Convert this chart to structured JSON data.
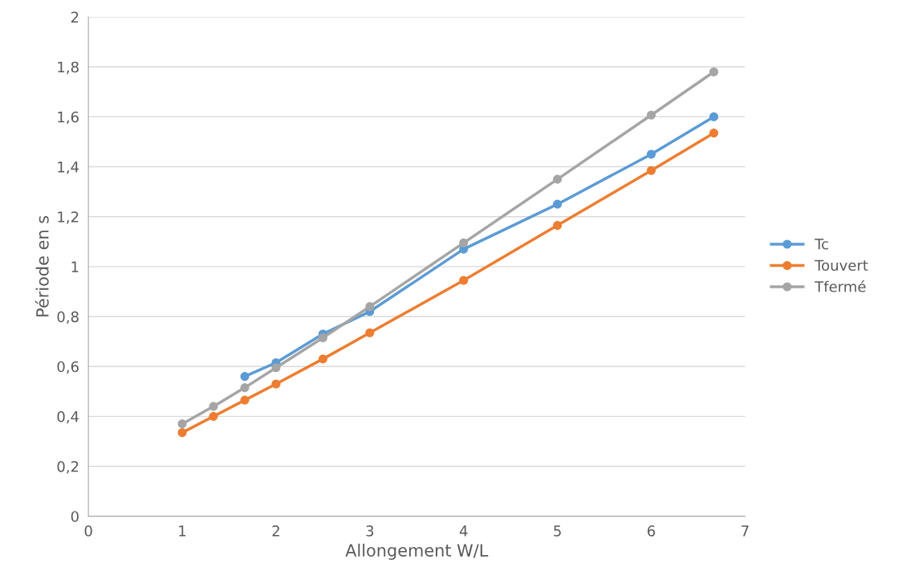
{
  "chart_data": {
    "type": "line",
    "xlabel": "Allongement W/L",
    "ylabel": "Période en s",
    "xlim": [
      0,
      7
    ],
    "xticks": [
      0,
      1,
      2,
      3,
      4,
      5,
      6,
      7
    ],
    "ylim": [
      0,
      2
    ],
    "yticks": [
      {
        "value": 0,
        "label": "0"
      },
      {
        "value": 0.2,
        "label": "0,2"
      },
      {
        "value": 0.4,
        "label": "0,4"
      },
      {
        "value": 0.6,
        "label": "0,6"
      },
      {
        "value": 0.8,
        "label": "0,8"
      },
      {
        "value": 1,
        "label": "1"
      },
      {
        "value": 1.2,
        "label": "1,2"
      },
      {
        "value": 1.4,
        "label": "1,4"
      },
      {
        "value": 1.6,
        "label": "1,6"
      },
      {
        "value": 1.8,
        "label": "1,8"
      },
      {
        "value": 2,
        "label": "2"
      }
    ],
    "grid": "y",
    "legend": "right",
    "marker": "circle",
    "line_style": "solid",
    "series": [
      {
        "name": "Tc",
        "color": "#5b9bd5",
        "x": [
          1.667,
          2,
          2.5,
          3,
          4,
          5,
          6,
          6.667
        ],
        "values": [
          0.56,
          0.615,
          0.73,
          0.82,
          1.07,
          1.25,
          1.45,
          1.6
        ]
      },
      {
        "name": "Touvert",
        "color": "#ed7d31",
        "x": [
          1,
          1.333,
          1.667,
          2,
          2.5,
          3,
          4,
          5,
          6,
          6.667
        ],
        "values": [
          0.335,
          0.4,
          0.465,
          0.53,
          0.63,
          0.735,
          0.945,
          1.165,
          1.385,
          1.535
        ]
      },
      {
        "name": "Tfermé",
        "color": "#a5a5a5",
        "x": [
          1,
          1.333,
          1.667,
          2,
          2.5,
          3,
          4,
          5,
          6,
          6.667
        ],
        "values": [
          0.37,
          0.44,
          0.515,
          0.595,
          0.715,
          0.84,
          1.095,
          1.35,
          1.607,
          1.78
        ]
      }
    ]
  }
}
